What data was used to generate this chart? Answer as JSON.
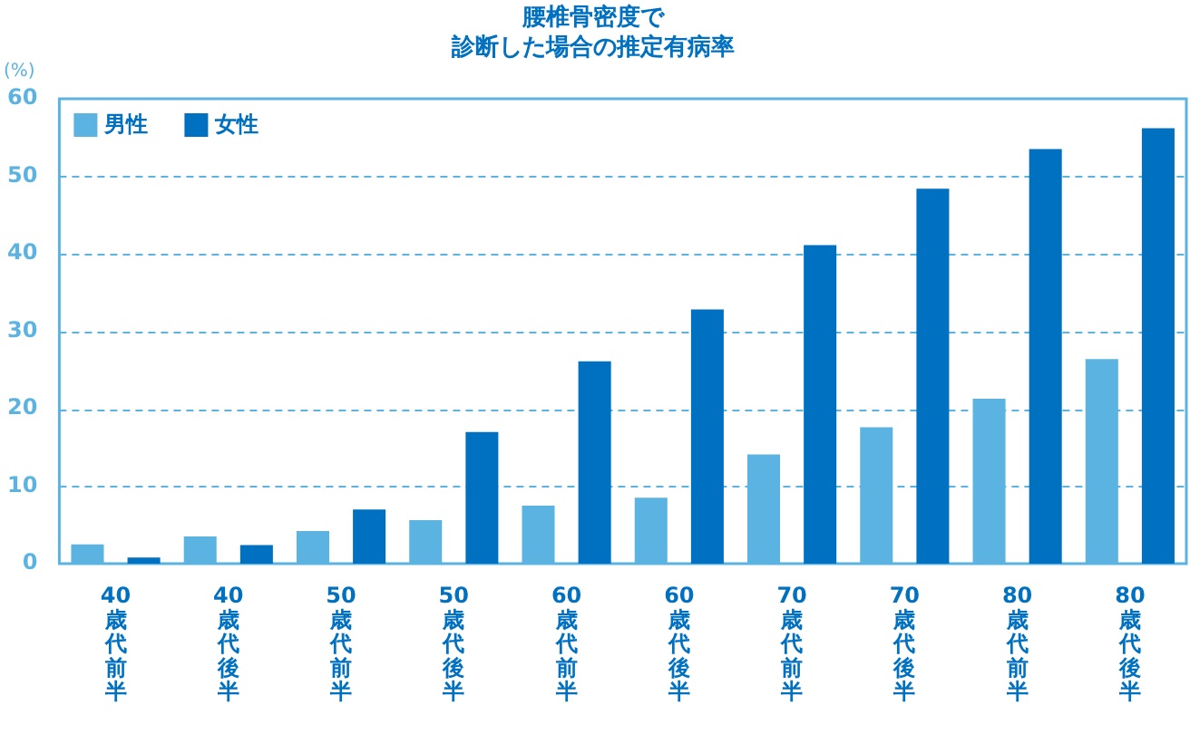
{
  "chart_data": {
    "type": "bar",
    "title": "腰椎骨密度で",
    "subtitle": "診断した場合の推定有病率",
    "ylabel": "(%)",
    "categories": [
      "40歳代前半",
      "40歳代後半",
      "50歳代前半",
      "50歳代後半",
      "60歳代前半",
      "60歳代後半",
      "70歳代前半",
      "70歳代後半",
      "80歳代前半",
      "80歳代後半"
    ],
    "series": [
      {
        "name": "男性",
        "color": "#5ab3e0",
        "values": [
          2.5,
          3.5,
          4.2,
          5.6,
          7.5,
          8.5,
          14.1,
          17.6,
          21.3,
          26.4
        ]
      },
      {
        "name": "女性",
        "color": "#0070c0",
        "values": [
          0.8,
          2.4,
          7.0,
          17.0,
          26.1,
          32.8,
          41.1,
          48.4,
          53.5,
          56.2
        ]
      }
    ],
    "ylim": [
      0,
      60
    ],
    "yticks": [
      0,
      10,
      20,
      30,
      40,
      50,
      60
    ],
    "grid": "y",
    "legend": "top left"
  }
}
